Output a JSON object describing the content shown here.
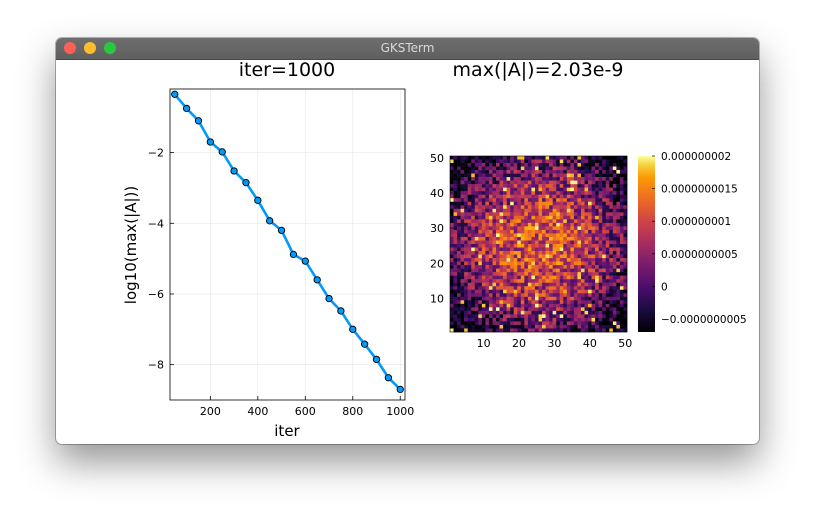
{
  "window": {
    "title": "GKSTerm"
  },
  "chart_data": [
    {
      "type": "line",
      "title": "iter=1000",
      "xlabel": "iter",
      "ylabel": "log10(max(|A|))",
      "xlim": [
        30,
        1020
      ],
      "ylim": [
        -9,
        -0.2
      ],
      "xticks": [
        200,
        400,
        600,
        800,
        1000
      ],
      "yticks": [
        -8,
        -6,
        -4,
        -2
      ],
      "ytick_labels": [
        "−8",
        "−6",
        "−4",
        "−2"
      ],
      "grid": true,
      "marker": "circle",
      "color": "#009AFA",
      "x": [
        50,
        100,
        150,
        200,
        250,
        300,
        350,
        400,
        450,
        500,
        550,
        600,
        650,
        700,
        750,
        800,
        850,
        900,
        950,
        1000
      ],
      "y": [
        -0.35,
        -0.75,
        -1.1,
        -1.7,
        -1.98,
        -2.52,
        -2.85,
        -3.35,
        -3.93,
        -4.2,
        -4.88,
        -5.07,
        -5.6,
        -6.13,
        -6.48,
        -7.0,
        -7.42,
        -7.85,
        -8.37,
        -8.7
      ]
    },
    {
      "type": "heatmap",
      "title": "max(|A|)=2.03e-9",
      "xlim": [
        0.5,
        50.5
      ],
      "ylim": [
        0.5,
        50.5
      ],
      "xticks": [
        10,
        20,
        30,
        40,
        50
      ],
      "yticks": [
        10,
        20,
        30,
        40,
        50
      ],
      "grid_size": [
        50,
        50
      ],
      "colormap": "inferno",
      "colorbar": {
        "min": -7e-10,
        "max": 2e-09,
        "ticks": [
          -5e-10,
          0,
          5e-10,
          1e-09,
          1.5e-09,
          2e-09
        ],
        "tick_labels": [
          "−0.0000000005",
          "0",
          "0.0000000005",
          "0.000000001",
          "0.0000000015",
          "0.000000002"
        ]
      }
    }
  ]
}
